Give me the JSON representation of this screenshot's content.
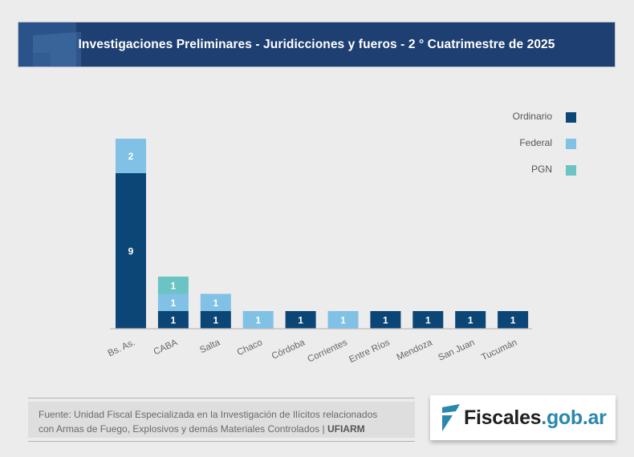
{
  "header": {
    "title": "Investigaciones Preliminares - Juridicciones y fueros - 2 ° Cuatrimestre de 2025"
  },
  "chart_data": {
    "type": "bar",
    "stacked": true,
    "title": "Investigaciones Preliminares - Juridicciones y fueros - 2 ° Cuatrimestre de 2025",
    "xlabel": "",
    "ylabel": "",
    "ylim": [
      0,
      11
    ],
    "grid": false,
    "legend_position": "top-right",
    "categories": [
      "Bs. As.",
      "CABA",
      "Salta",
      "Chaco",
      "Córdoba",
      "Corrientes",
      "Entre Ríos",
      "Mendoza",
      "San Juan",
      "Tucumán"
    ],
    "series": [
      {
        "name": "Ordinario",
        "color": "#0b4677",
        "values": [
          9,
          1,
          1,
          0,
          1,
          0,
          1,
          1,
          1,
          1
        ]
      },
      {
        "name": "Federal",
        "color": "#80c1e5",
        "values": [
          2,
          1,
          1,
          1,
          0,
          1,
          0,
          0,
          0,
          0
        ]
      },
      {
        "name": "PGN",
        "color": "#6cc3c3",
        "values": [
          0,
          1,
          0,
          0,
          0,
          0,
          0,
          0,
          0,
          0
        ]
      }
    ]
  },
  "footer": {
    "source_line1": "Fuente: Unidad Fiscal Especializada en la Investigación de Ilícitos relacionados",
    "source_line2": "con Armas de Fuego, Explosivos y demás Materiales Controlados | ",
    "source_agency": "UFIARM"
  },
  "logo": {
    "part1": "Fiscales",
    "part2": ".gob.ar",
    "icon": "fiscales-f-icon"
  }
}
